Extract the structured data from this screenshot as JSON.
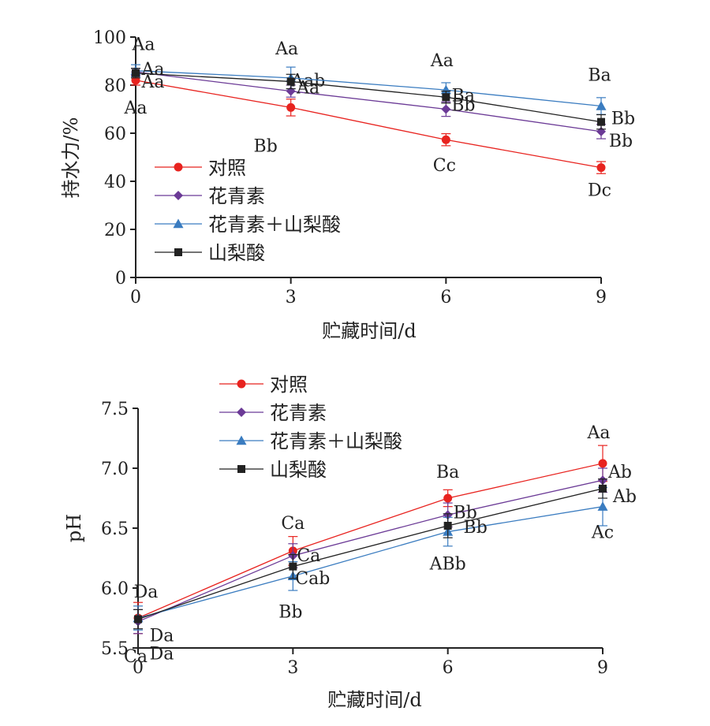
{
  "chart_data": [
    {
      "type": "line",
      "xlabel": "贮藏时间/d",
      "ylabel": "持水力/%",
      "x": [
        0,
        3,
        6,
        9
      ],
      "xticks": [
        "0",
        "3",
        "6",
        "9"
      ],
      "ylim": [
        0,
        100
      ],
      "yticks": [
        "0",
        "20",
        "40",
        "60",
        "80",
        "100"
      ],
      "grid": false,
      "legend_position": "lower-left",
      "series": [
        {
          "name": "对照",
          "color": "#e8231f",
          "marker": "circle",
          "values": [
            82.0,
            70.7,
            57.3,
            45.7
          ],
          "errors": [
            2.0,
            3.5,
            2.5,
            2.5
          ],
          "labels": [
            "Aa",
            "Bb",
            "Cc",
            "Dc"
          ]
        },
        {
          "name": "花青素",
          "color": "#6b3a96",
          "marker": "diamond",
          "values": [
            85.5,
            77.5,
            70.0,
            60.7
          ],
          "errors": [
            1.5,
            2.5,
            3.0,
            3.0
          ],
          "labels": [
            "Aa",
            "Aab",
            "Bb",
            "Bb"
          ]
        },
        {
          "name": "花青素＋山梨酸",
          "color": "#3a7cc0",
          "marker": "triangle",
          "values": [
            86.0,
            83.0,
            78.0,
            71.3
          ],
          "errors": [
            2.5,
            4.5,
            3.0,
            3.5
          ],
          "labels": [
            "Aa",
            "Aa",
            "Aa",
            "Ba"
          ]
        },
        {
          "name": "山梨酸",
          "color": "#222222",
          "marker": "square",
          "values": [
            85.0,
            81.5,
            75.0,
            64.7
          ],
          "errors": [
            2.0,
            3.0,
            2.5,
            3.0
          ],
          "labels": [
            "Aa",
            "Aa",
            "Ba",
            "Bb"
          ]
        }
      ]
    },
    {
      "type": "line",
      "xlabel": "贮藏时间/d",
      "ylabel": "pH",
      "x": [
        0,
        3,
        6,
        9
      ],
      "xticks": [
        "0",
        "3",
        "6",
        "9"
      ],
      "ylim": [
        5.5,
        7.5
      ],
      "yticks": [
        "5.5",
        "6.0",
        "6.5",
        "7.0",
        "7.5"
      ],
      "grid": false,
      "legend_position": "top-left",
      "series": [
        {
          "name": "对照",
          "color": "#e8231f",
          "marker": "circle",
          "values": [
            5.75,
            6.31,
            6.75,
            7.04
          ],
          "errors": [
            0.13,
            0.12,
            0.07,
            0.15
          ],
          "labels": [
            "Da",
            "Ca",
            "Ba",
            "Aa"
          ]
        },
        {
          "name": "花青素",
          "color": "#6b3a96",
          "marker": "diamond",
          "values": [
            5.72,
            6.27,
            6.61,
            6.9
          ],
          "errors": [
            0.1,
            0.1,
            0.1,
            0.1
          ],
          "labels": [
            "Da",
            "Ca",
            "Bb",
            "Ab"
          ]
        },
        {
          "name": "花青素＋山梨酸",
          "color": "#3a7cc0",
          "marker": "triangle",
          "values": [
            5.75,
            6.1,
            6.47,
            6.68
          ],
          "errors": [
            0.1,
            0.12,
            0.12,
            0.16
          ],
          "labels": [
            "Ca",
            "Cab",
            "ABb",
            "Ac"
          ]
        },
        {
          "name": "山梨酸",
          "color": "#222222",
          "marker": "square",
          "values": [
            5.74,
            6.18,
            6.52,
            6.83
          ],
          "errors": [
            0.08,
            0.1,
            0.1,
            0.08
          ],
          "labels": [
            "Da",
            "Bb",
            "Bb",
            "Ab"
          ]
        }
      ]
    }
  ]
}
